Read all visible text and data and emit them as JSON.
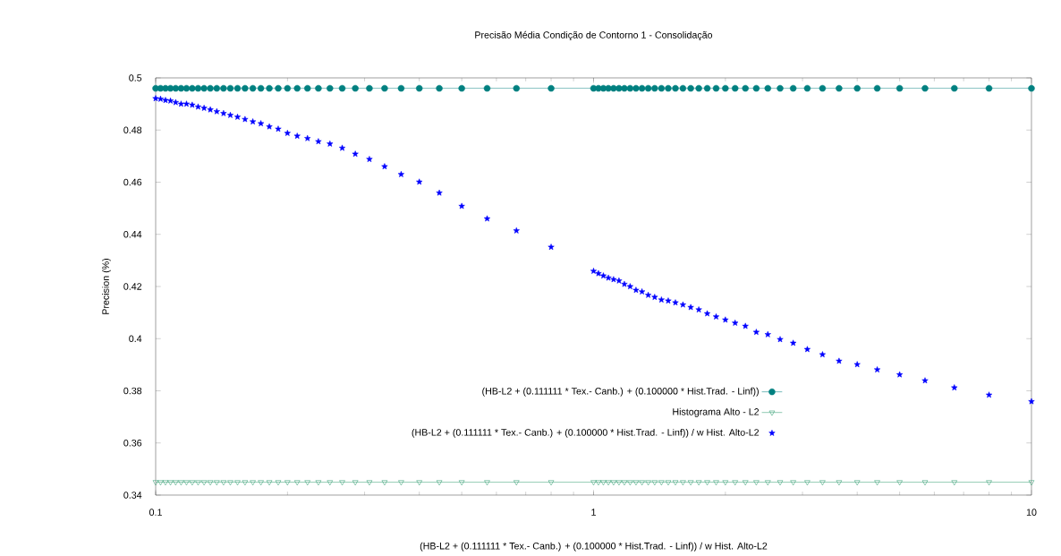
{
  "chart_data": {
    "type": "line",
    "title": "Precisão Média Condição de Contorno 1 - Consolidação",
    "xlabel": "(HB-L2 + (0.111111 * Tex.- Canb.) + (0.100000 * Hist.Trad. - Linf)) / w Hist. Alto-L2",
    "ylabel": "Precision (%)",
    "log": "x",
    "legend": "bottom",
    "xlim": [
      0.1,
      10
    ],
    "xticks": [
      0.1,
      1,
      10
    ],
    "ylim": [
      0.34,
      0.5
    ],
    "yticks": [
      0.34,
      0.36,
      0.38,
      0.4,
      0.42,
      0.44,
      0.46,
      0.48,
      0.5
    ],
    "x": [
      0.1,
      0.1026,
      0.1053,
      0.1081,
      0.1111,
      0.1143,
      0.1176,
      0.1212,
      0.125,
      0.129,
      0.1333,
      0.1379,
      0.1429,
      0.1481,
      0.1538,
      0.16,
      0.1667,
      0.1739,
      0.1818,
      0.1905,
      0.2,
      0.2105,
      0.2222,
      0.2353,
      0.25,
      0.2667,
      0.2857,
      0.3077,
      0.3333,
      0.3636,
      0.4,
      0.4444,
      0.5,
      0.5714,
      0.6667,
      0.8,
      1,
      1.026,
      1.053,
      1.081,
      1.111,
      1.143,
      1.176,
      1.212,
      1.25,
      1.29,
      1.333,
      1.379,
      1.429,
      1.481,
      1.538,
      1.6,
      1.667,
      1.739,
      1.818,
      1.905,
      2,
      2.105,
      2.222,
      2.353,
      2.5,
      2.667,
      2.857,
      3.077,
      3.333,
      3.636,
      4,
      4.444,
      5,
      5.714,
      6.667,
      8,
      10
    ],
    "series": [
      {
        "name": "(HB-L2 + (0.111111 * Tex.- Canb.) + (0.100000 * Hist.Trad. - Linf))",
        "color": "#008080",
        "marker": "circle",
        "line_style": "solid",
        "values": [
          0.496,
          0.496,
          0.496,
          0.496,
          0.496,
          0.496,
          0.496,
          0.496,
          0.496,
          0.496,
          0.496,
          0.496,
          0.496,
          0.496,
          0.496,
          0.496,
          0.496,
          0.496,
          0.496,
          0.496,
          0.496,
          0.496,
          0.496,
          0.496,
          0.496,
          0.496,
          0.496,
          0.496,
          0.496,
          0.496,
          0.496,
          0.496,
          0.496,
          0.496,
          0.496,
          0.496,
          0.496,
          0.496,
          0.496,
          0.496,
          0.496,
          0.496,
          0.496,
          0.496,
          0.496,
          0.496,
          0.496,
          0.496,
          0.496,
          0.496,
          0.496,
          0.496,
          0.496,
          0.496,
          0.496,
          0.496,
          0.496,
          0.496,
          0.496,
          0.496,
          0.496,
          0.496,
          0.496,
          0.496,
          0.496,
          0.496,
          0.496,
          0.496,
          0.496,
          0.496,
          0.496,
          0.496,
          0.496
        ]
      },
      {
        "name": "Histograma Alto - L2",
        "color": "#2e9a6e",
        "marker": "triangle",
        "line_style": "solid",
        "values": [
          0.345,
          0.345,
          0.345,
          0.345,
          0.345,
          0.345,
          0.345,
          0.345,
          0.345,
          0.345,
          0.345,
          0.345,
          0.345,
          0.345,
          0.345,
          0.345,
          0.345,
          0.345,
          0.345,
          0.345,
          0.345,
          0.345,
          0.345,
          0.345,
          0.345,
          0.345,
          0.345,
          0.345,
          0.345,
          0.345,
          0.345,
          0.345,
          0.345,
          0.345,
          0.345,
          0.345,
          0.345,
          0.345,
          0.345,
          0.345,
          0.345,
          0.345,
          0.345,
          0.345,
          0.345,
          0.345,
          0.345,
          0.345,
          0.345,
          0.345,
          0.345,
          0.345,
          0.345,
          0.345,
          0.345,
          0.345,
          0.345,
          0.345,
          0.345,
          0.345,
          0.345,
          0.345,
          0.345,
          0.345,
          0.345,
          0.345,
          0.345,
          0.345,
          0.345,
          0.345,
          0.345,
          0.345,
          0.345
        ]
      },
      {
        "name": "(HB-L2 + (0.111111 * Tex.- Canb.) + (0.100000 * Hist.Trad. - Linf)) / w Hist. Alto-L2",
        "type": "scatter",
        "color": "#0000ff",
        "marker": "star",
        "values": [
          0.4921,
          0.4919,
          0.4914,
          0.4912,
          0.4906,
          0.49,
          0.49,
          0.4896,
          0.4889,
          0.4884,
          0.4878,
          0.4871,
          0.4864,
          0.4857,
          0.485,
          0.4841,
          0.4832,
          0.4825,
          0.4813,
          0.4804,
          0.4788,
          0.4777,
          0.4768,
          0.4756,
          0.4747,
          0.4731,
          0.4708,
          0.4688,
          0.466,
          0.463,
          0.4601,
          0.4559,
          0.4508,
          0.446,
          0.4414,
          0.4351,
          0.4259,
          0.425,
          0.4241,
          0.4233,
          0.4227,
          0.4222,
          0.4209,
          0.42,
          0.4186,
          0.418,
          0.4167,
          0.4159,
          0.4149,
          0.4145,
          0.4138,
          0.413,
          0.412,
          0.4111,
          0.4096,
          0.4084,
          0.4072,
          0.406,
          0.4048,
          0.4025,
          0.4016,
          0.3997,
          0.3983,
          0.3959,
          0.3939,
          0.3914,
          0.3901,
          0.3881,
          0.3862,
          0.3839,
          0.3812,
          0.3784,
          0.3759
        ]
      }
    ]
  }
}
